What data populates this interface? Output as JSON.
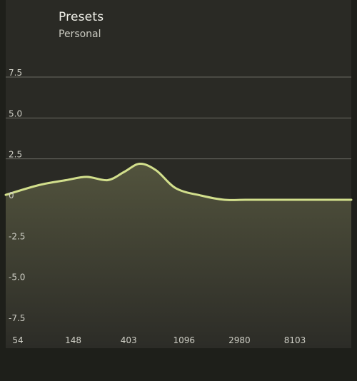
{
  "header": {
    "title": "Presets",
    "subtitle": "Personal"
  },
  "chart_data": {
    "type": "area",
    "xlabel": "",
    "ylabel": "",
    "ylim": [
      -7.5,
      7.5
    ],
    "y_ticks": [
      "7.5",
      "5.0",
      "2.5",
      "0",
      "-2.5",
      "-5.0",
      "-7.5"
    ],
    "y_tick_values": [
      7.5,
      5.0,
      2.5,
      0,
      -2.5,
      -5.0,
      -7.5
    ],
    "x_ticks": [
      "54",
      "148",
      "403",
      "1096",
      "2980",
      "8103"
    ],
    "grid": true,
    "series": [
      {
        "x": [
          32,
          60,
          100,
          148,
          220,
          300,
          403,
          550,
          800,
          1300,
          2000,
          2980,
          5000,
          8103,
          16000,
          22000
        ],
        "values": [
          0.3,
          0.9,
          1.2,
          1.4,
          1.2,
          1.7,
          2.2,
          1.8,
          0.7,
          0.25,
          0.0,
          0.0,
          0.0,
          0.0,
          0.0,
          0.0
        ]
      }
    ],
    "colors": {
      "line": "#d2df8c",
      "fill_top": "#52533d",
      "fill_bottom": "#2c2c27",
      "grid": "#6b6b63",
      "label": "#cfcfc6"
    }
  }
}
